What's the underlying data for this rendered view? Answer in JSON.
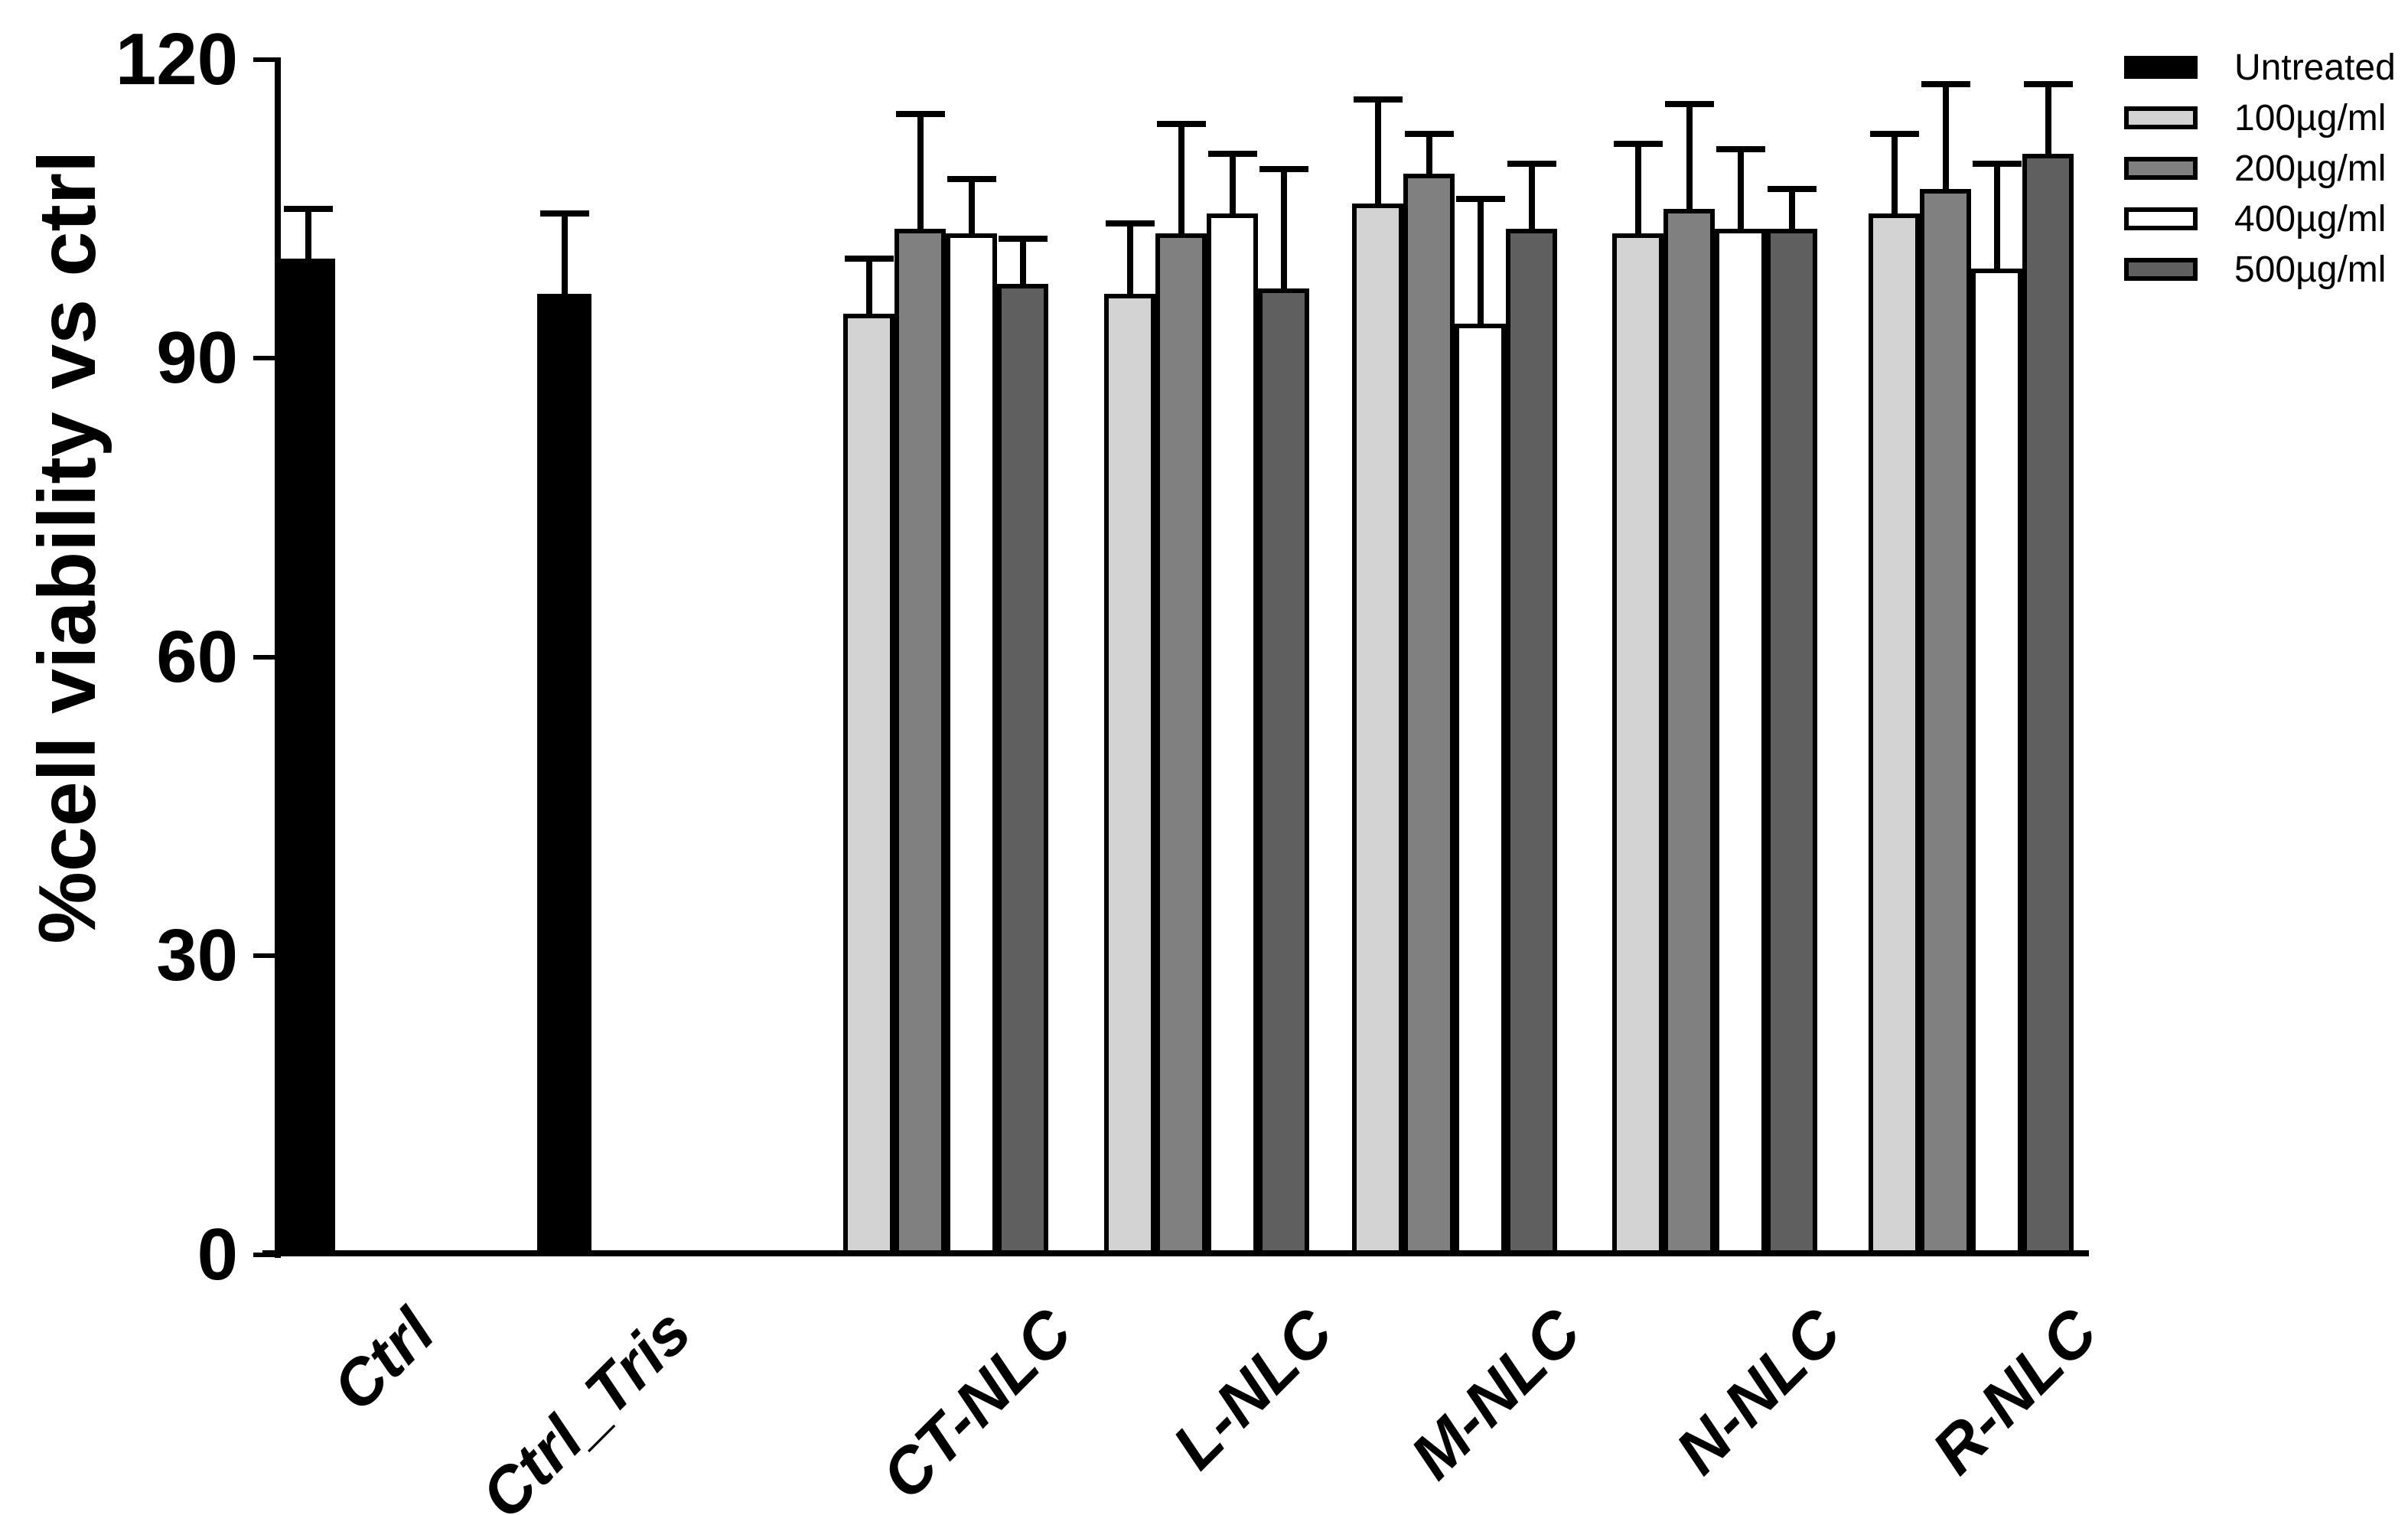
{
  "chart_data": {
    "type": "bar",
    "title": "",
    "ylabel": "%cell viability vs ctrl",
    "xlabel": "",
    "ylim": [
      0,
      120
    ],
    "yticks": [
      0,
      30,
      60,
      90,
      120
    ],
    "grid": false,
    "legend_position": "top-right",
    "error_bars": "upper standard-deviation bars with caps",
    "categories": [
      "Ctrl",
      "Ctrl_Tris",
      "CT-NLC",
      "L-NLC",
      "M-NLC",
      "N-NLC",
      "R-NLC"
    ],
    "series": [
      {
        "name": "Untreated",
        "color": "#000000",
        "values": [
          100,
          96.5,
          null,
          null,
          null,
          null,
          null
        ],
        "errors": [
          5,
          8,
          null,
          null,
          null,
          null,
          null
        ]
      },
      {
        "name": "100µg/ml",
        "color": "#d3d3d3",
        "values": [
          null,
          null,
          94.5,
          96.5,
          105.5,
          102.5,
          104.5
        ],
        "errors": [
          null,
          null,
          5.5,
          7,
          10.5,
          9,
          8
        ]
      },
      {
        "name": "200µg/ml",
        "color": "#808080",
        "values": [
          null,
          null,
          103,
          102.5,
          108.5,
          105,
          107
        ],
        "errors": [
          null,
          null,
          11.5,
          11,
          4,
          10.5,
          10.5
        ]
      },
      {
        "name": "400µg/ml",
        "color": "#ffffff",
        "values": [
          null,
          null,
          102.5,
          104.5,
          93.5,
          103,
          99
        ],
        "errors": [
          null,
          null,
          5.5,
          6,
          12.5,
          8,
          10.5
        ]
      },
      {
        "name": "500µg/ml",
        "color": "#5f5f5f",
        "values": [
          null,
          null,
          97.5,
          97,
          103,
          103,
          110.5
        ],
        "errors": [
          null,
          null,
          4.5,
          12,
          6.5,
          4,
          7
        ]
      }
    ]
  }
}
